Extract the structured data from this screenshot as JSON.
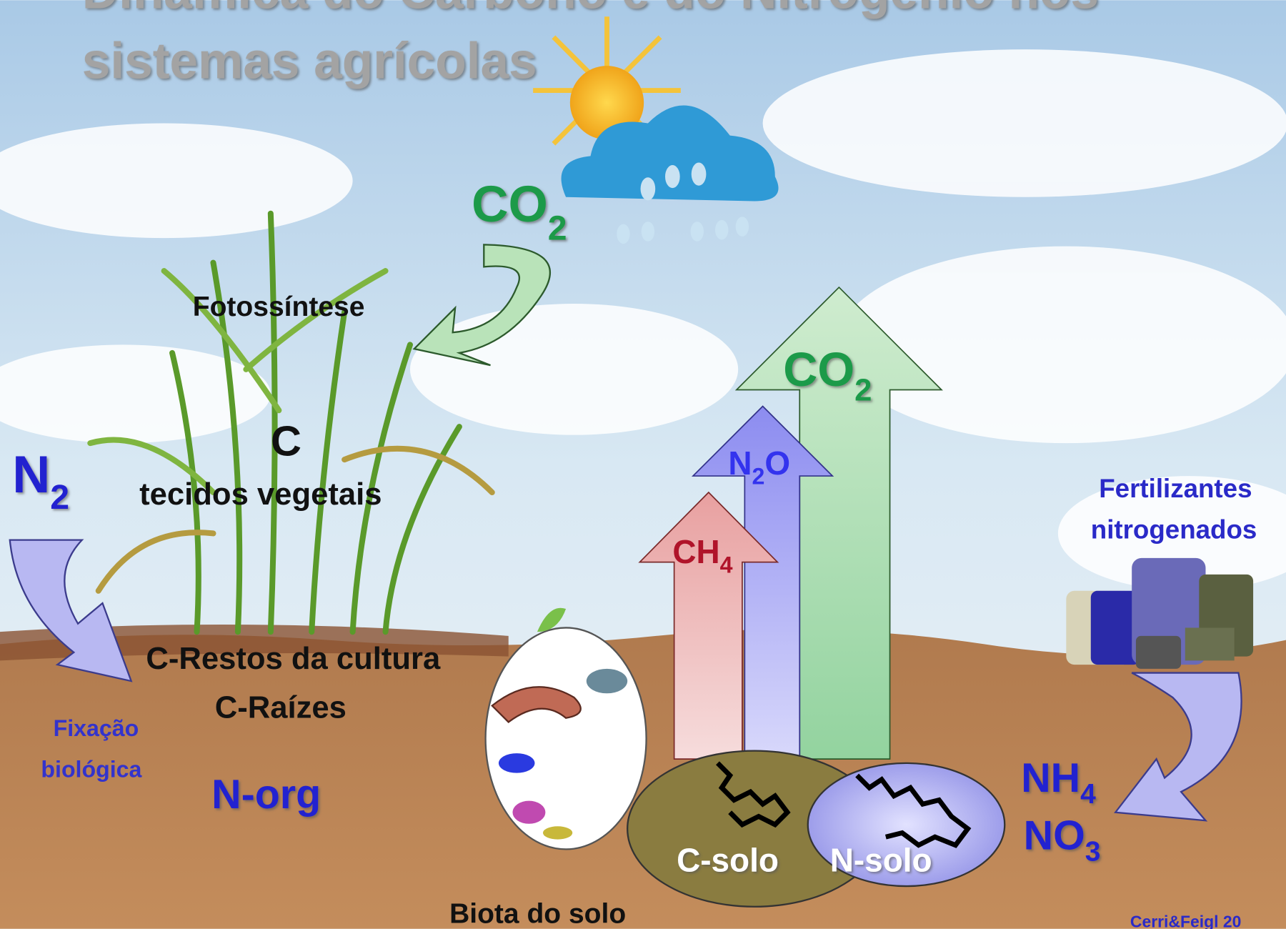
{
  "header": {
    "title": [
      "Dinâmica do Carbono e do Nitrogênio nos",
      "sistemas agrícolas"
    ]
  },
  "labels": {
    "co2_atmosphere": {
      "base": "CO",
      "sub": "2"
    },
    "photosynthesis": "Fotossíntese",
    "carbon": "C",
    "plant_tissues": "tecidos vegetais",
    "n2": {
      "base": "N",
      "sub": "2"
    },
    "crop_residues": "C-Restos da cultura",
    "roots": "C-Raízes",
    "fixation": [
      "Fixação",
      "biológica"
    ],
    "n_org": "N-org",
    "soil_biota": "Biota do solo",
    "co2_emission": {
      "base": "CO",
      "sub": "2"
    },
    "n2o_emission": {
      "base": "N",
      "sub": "2",
      "tail": "O"
    },
    "ch4_emission": {
      "base": "CH",
      "sub": "4"
    },
    "c_soil": "C-solo",
    "n_soil": "N-solo",
    "fertilizers": [
      "Fertilizantes",
      "nitrogenados"
    ],
    "nh4": {
      "base": "NH",
      "sub": "4"
    },
    "no3": {
      "base": "NO",
      "sub": "3"
    },
    "credit": "Cerri&Feigl 20"
  }
}
